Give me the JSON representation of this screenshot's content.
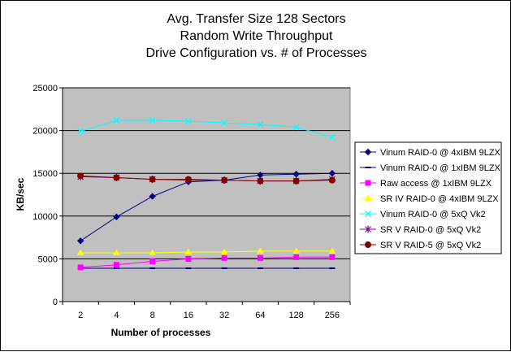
{
  "chart_data": {
    "type": "line",
    "title": [
      "Avg. Transfer Size 128 Sectors",
      "Random Write Throughput",
      "Drive Configuration vs. # of Processes"
    ],
    "xlabel": "Number of processes",
    "ylabel": "KB/sec",
    "categories": [
      "2",
      "4",
      "8",
      "16",
      "32",
      "64",
      "128",
      "256"
    ],
    "ylim": [
      0,
      25000
    ],
    "yticks": [
      "0",
      "5000",
      "10000",
      "15000",
      "20000",
      "25000"
    ],
    "grid": true,
    "legend_position": "right",
    "series": [
      {
        "name": "Vinum RAID-0 @ 4xIBM 9LZX",
        "color": "#000080",
        "marker": "diamond",
        "values": [
          7100,
          9900,
          12300,
          14000,
          14200,
          14800,
          14900,
          15000
        ]
      },
      {
        "name": "Vinum RAID-0 @ 1xIBM 9LZX",
        "color": "#000080",
        "marker": "dash",
        "values": [
          3900,
          3900,
          3900,
          3900,
          3900,
          3900,
          3900,
          3900
        ]
      },
      {
        "name": "Raw access @ 1xIBM 9LZX",
        "color": "#ff00ff",
        "marker": "square",
        "values": [
          4000,
          4300,
          4700,
          5000,
          5100,
          5100,
          5200,
          5200
        ]
      },
      {
        "name": "SR IV RAID-0 @ 4xIBM 9LZX",
        "color": "#ffff00",
        "marker": "triangle",
        "values": [
          5700,
          5700,
          5700,
          5800,
          5800,
          5900,
          5900,
          5900
        ]
      },
      {
        "name": "Vinum RAID-0 @ 5xQ Vk2",
        "color": "#00ffff",
        "marker": "x",
        "values": [
          19900,
          21200,
          21200,
          21100,
          20900,
          20700,
          20400,
          19200
        ]
      },
      {
        "name": "SR V RAID-0 @ 5xQ Vk2",
        "color": "#800080",
        "marker": "star",
        "values": [
          14600,
          14500,
          14300,
          14200,
          14200,
          14100,
          14100,
          14300
        ]
      },
      {
        "name": "SR V RAID-5 @ 5xQ Vk2",
        "color": "#800000",
        "marker": "circle",
        "values": [
          14700,
          14500,
          14300,
          14300,
          14200,
          14100,
          14100,
          14200
        ]
      }
    ]
  }
}
